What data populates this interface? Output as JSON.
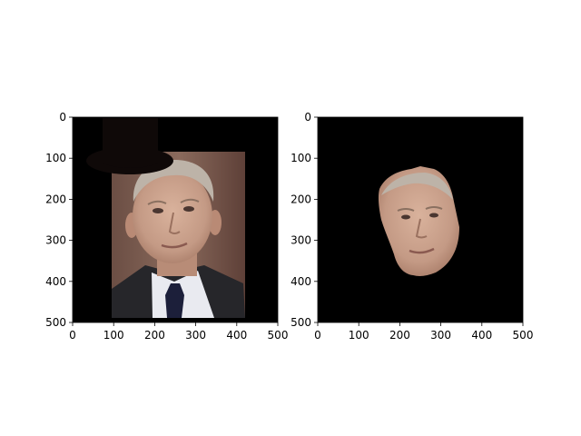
{
  "figure": {
    "background": "#ffffff",
    "axes_color": "#000000"
  },
  "chart_data": [
    {
      "type": "image",
      "title": "",
      "xlabel": "",
      "ylabel": "",
      "xlim": [
        0,
        500
      ],
      "ylim": [
        500,
        0
      ],
      "xticks": [
        0,
        100,
        200,
        300,
        400,
        500
      ],
      "yticks": [
        0,
        100,
        200,
        300,
        400,
        500
      ],
      "grid": false,
      "content": "portrait-with-top-hat",
      "icon": "top-hat-icon",
      "colors": {
        "background": "#000000",
        "hat": "#0f0908",
        "suit": "#26262a",
        "shirt": "#e9eaf0",
        "skin": "#c8a08c"
      }
    },
    {
      "type": "image",
      "title": "",
      "xlabel": "",
      "ylabel": "",
      "xlim": [
        0,
        500
      ],
      "ylim": [
        500,
        0
      ],
      "xticks": [
        0,
        100,
        200,
        300,
        400,
        500
      ],
      "yticks": [
        0,
        100,
        200,
        300,
        400,
        500
      ],
      "grid": false,
      "content": "face-mask-cutout",
      "icon": "face-cutout-icon",
      "colors": {
        "background": "#000000",
        "skin": "#c8a08c"
      }
    }
  ]
}
